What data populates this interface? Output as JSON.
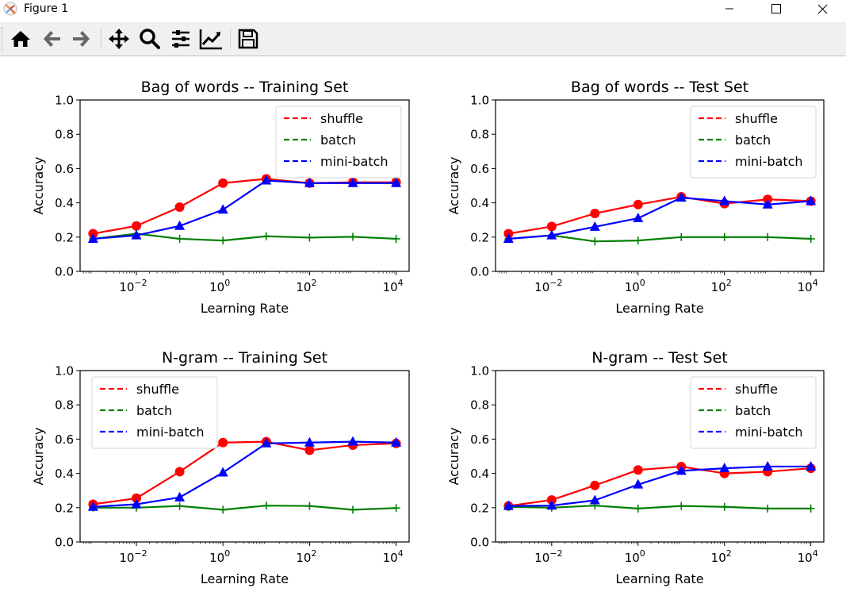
{
  "window": {
    "title": "Figure 1",
    "minimize": "—",
    "maximize": "☐",
    "close": "✕"
  },
  "toolbar": {
    "buttons": [
      {
        "icon": "home-icon",
        "tooltip": "Reset original view"
      },
      {
        "icon": "back-arrow-icon",
        "tooltip": "Back"
      },
      {
        "icon": "forward-arrow-icon",
        "tooltip": "Forward"
      },
      {
        "icon": "pan-icon",
        "tooltip": "Pan"
      },
      {
        "icon": "zoom-icon",
        "tooltip": "Zoom"
      },
      {
        "icon": "configure-subplots-icon",
        "tooltip": "Configure subplots"
      },
      {
        "icon": "edit-axis-icon",
        "tooltip": "Edit axis"
      },
      {
        "icon": "save-icon",
        "tooltip": "Save"
      }
    ]
  },
  "colors": {
    "shuffle": "#ff0000",
    "batch": "#008000",
    "mini_batch": "#0000ff"
  },
  "chart_data": [
    {
      "type": "line",
      "title": "Bag of words -- Training Set",
      "xlabel": "Learning Rate",
      "ylabel": "Accuracy",
      "xscale": "log",
      "xlim_exp": [
        -3.3,
        4.3
      ],
      "ylim": [
        0.0,
        1.0
      ],
      "xticks": [
        {
          "exp": -2,
          "label": "10",
          "sup": "−2"
        },
        {
          "exp": 0,
          "label": "10",
          "sup": "0"
        },
        {
          "exp": 2,
          "label": "10",
          "sup": "2"
        },
        {
          "exp": 4,
          "label": "10",
          "sup": "4"
        }
      ],
      "yticks": [
        "0.0",
        "0.2",
        "0.4",
        "0.6",
        "0.8",
        "1.0"
      ],
      "legend": "upper-right",
      "x": [
        0.001,
        0.01,
        0.1,
        1,
        10,
        100,
        1000,
        10000
      ],
      "series": [
        {
          "name": "shuffle",
          "marker": "circle",
          "values": [
            0.22,
            0.265,
            0.375,
            0.515,
            0.54,
            0.515,
            0.52,
            0.52
          ]
        },
        {
          "name": "batch",
          "marker": "plus",
          "values": [
            0.19,
            0.22,
            0.19,
            0.18,
            0.205,
            0.197,
            0.202,
            0.19
          ]
        },
        {
          "name": "mini-batch",
          "marker": "triangle",
          "values": [
            0.19,
            0.21,
            0.265,
            0.36,
            0.53,
            0.515,
            0.515,
            0.515
          ]
        }
      ]
    },
    {
      "type": "line",
      "title": "Bag of words -- Test Set",
      "xlabel": "Learning Rate",
      "ylabel": "Accuracy",
      "xscale": "log",
      "xlim_exp": [
        -3.3,
        4.3
      ],
      "ylim": [
        0.0,
        1.0
      ],
      "xticks": [
        {
          "exp": -2,
          "label": "10",
          "sup": "−2"
        },
        {
          "exp": 0,
          "label": "10",
          "sup": "0"
        },
        {
          "exp": 2,
          "label": "10",
          "sup": "2"
        },
        {
          "exp": 4,
          "label": "10",
          "sup": "4"
        }
      ],
      "yticks": [
        "0.0",
        "0.2",
        "0.4",
        "0.6",
        "0.8",
        "1.0"
      ],
      "legend": "upper-right",
      "x": [
        0.001,
        0.01,
        0.1,
        1,
        10,
        100,
        1000,
        10000
      ],
      "series": [
        {
          "name": "shuffle",
          "marker": "circle",
          "values": [
            0.22,
            0.262,
            0.338,
            0.39,
            0.435,
            0.395,
            0.42,
            0.41
          ]
        },
        {
          "name": "batch",
          "marker": "plus",
          "values": [
            0.19,
            0.21,
            0.175,
            0.18,
            0.2,
            0.2,
            0.2,
            0.19
          ]
        },
        {
          "name": "mini-batch",
          "marker": "triangle",
          "values": [
            0.19,
            0.21,
            0.26,
            0.31,
            0.43,
            0.41,
            0.39,
            0.41
          ]
        }
      ]
    },
    {
      "type": "line",
      "title": "N-gram -- Training Set",
      "xlabel": "Learning Rate",
      "ylabel": "Accuracy",
      "xscale": "log",
      "xlim_exp": [
        -3.3,
        4.3
      ],
      "ylim": [
        0.0,
        1.0
      ],
      "xticks": [
        {
          "exp": -2,
          "label": "10",
          "sup": "−2"
        },
        {
          "exp": 0,
          "label": "10",
          "sup": "0"
        },
        {
          "exp": 2,
          "label": "10",
          "sup": "2"
        },
        {
          "exp": 4,
          "label": "10",
          "sup": "4"
        }
      ],
      "yticks": [
        "0.0",
        "0.2",
        "0.4",
        "0.6",
        "0.8",
        "1.0"
      ],
      "legend": "upper-left",
      "x": [
        0.001,
        0.01,
        0.1,
        1,
        10,
        100,
        1000,
        10000
      ],
      "series": [
        {
          "name": "shuffle",
          "marker": "circle",
          "values": [
            0.22,
            0.255,
            0.41,
            0.58,
            0.585,
            0.535,
            0.565,
            0.575
          ]
        },
        {
          "name": "batch",
          "marker": "plus",
          "values": [
            0.2,
            0.2,
            0.21,
            0.188,
            0.212,
            0.21,
            0.188,
            0.198
          ]
        },
        {
          "name": "mini-batch",
          "marker": "triangle",
          "values": [
            0.205,
            0.22,
            0.26,
            0.405,
            0.575,
            0.58,
            0.585,
            0.58
          ]
        }
      ]
    },
    {
      "type": "line",
      "title": "N-gram -- Test Set",
      "xlabel": "Learning Rate",
      "ylabel": "Accuracy",
      "xscale": "log",
      "xlim_exp": [
        -3.3,
        4.3
      ],
      "ylim": [
        0.0,
        1.0
      ],
      "xticks": [
        {
          "exp": -2,
          "label": "10",
          "sup": "−2"
        },
        {
          "exp": 0,
          "label": "10",
          "sup": "0"
        },
        {
          "exp": 2,
          "label": "10",
          "sup": "2"
        },
        {
          "exp": 4,
          "label": "10",
          "sup": "4"
        }
      ],
      "yticks": [
        "0.0",
        "0.2",
        "0.4",
        "0.6",
        "0.8",
        "1.0"
      ],
      "legend": "upper-right",
      "x": [
        0.001,
        0.01,
        0.1,
        1,
        10,
        100,
        1000,
        10000
      ],
      "series": [
        {
          "name": "shuffle",
          "marker": "circle",
          "values": [
            0.21,
            0.245,
            0.33,
            0.42,
            0.44,
            0.4,
            0.41,
            0.43
          ]
        },
        {
          "name": "batch",
          "marker": "plus",
          "values": [
            0.205,
            0.2,
            0.212,
            0.195,
            0.21,
            0.205,
            0.195,
            0.195
          ]
        },
        {
          "name": "mini-batch",
          "marker": "triangle",
          "values": [
            0.21,
            0.212,
            0.243,
            0.335,
            0.415,
            0.43,
            0.44,
            0.44
          ]
        }
      ]
    }
  ]
}
